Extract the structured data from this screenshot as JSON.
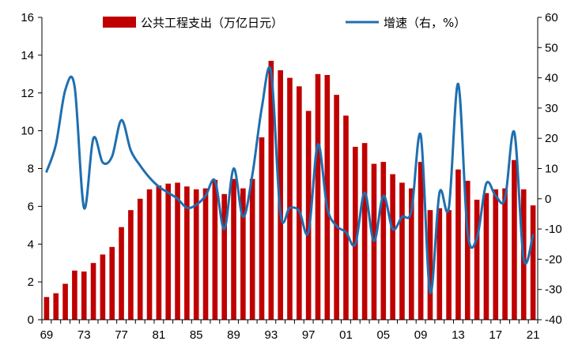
{
  "chart_data": {
    "type": "bar+line",
    "title": "",
    "legend": {
      "placement": "top",
      "entries": [
        "公共工程支出（万亿日元）",
        "增速（右，%）"
      ]
    },
    "colors": {
      "bar": "#c00000",
      "line": "#1f6fb0"
    },
    "categories": [
      "1969",
      "1970",
      "1971",
      "1972",
      "1973",
      "1974",
      "1975",
      "1976",
      "1977",
      "1978",
      "1979",
      "1980",
      "1981",
      "1982",
      "1983",
      "1984",
      "1985",
      "1986",
      "1987",
      "1988",
      "1989",
      "1990",
      "1991",
      "1992",
      "1993",
      "1994",
      "1995",
      "1996",
      "1997",
      "1998",
      "1999",
      "2000",
      "2001",
      "2002",
      "2003",
      "2004",
      "2005",
      "2006",
      "2007",
      "2008",
      "2009",
      "2010",
      "2011",
      "2012",
      "2013",
      "2014",
      "2015",
      "2016",
      "2017",
      "2018",
      "2019",
      "2020",
      "2021"
    ],
    "x_tick_labels": [
      "69",
      "73",
      "77",
      "81",
      "85",
      "89",
      "93",
      "97",
      "01",
      "05",
      "09",
      "13",
      "17",
      "21"
    ],
    "x_tick_categories": [
      "1969",
      "1973",
      "1977",
      "1981",
      "1985",
      "1989",
      "1993",
      "1997",
      "2001",
      "2005",
      "2009",
      "2013",
      "2017",
      "2021"
    ],
    "series": [
      {
        "name": "公共工程支出（万亿日元）",
        "type": "bar",
        "axis": "left",
        "values": [
          1.2,
          1.4,
          1.9,
          2.6,
          2.55,
          3.0,
          3.45,
          3.85,
          4.9,
          5.8,
          6.4,
          6.9,
          7.1,
          7.2,
          7.25,
          7.05,
          6.9,
          6.95,
          7.4,
          6.65,
          7.45,
          6.95,
          7.45,
          9.65,
          13.7,
          13.2,
          12.8,
          12.35,
          11.05,
          13.0,
          12.95,
          11.9,
          10.8,
          9.15,
          9.35,
          8.25,
          8.35,
          7.7,
          7.25,
          6.95,
          8.35,
          5.8,
          5.9,
          5.8,
          7.95,
          7.35,
          6.35,
          6.7,
          6.9,
          6.95,
          8.45,
          6.9,
          6.05
        ]
      },
      {
        "name": "增速（右，%）",
        "type": "line",
        "axis": "right",
        "values": [
          9,
          18,
          36,
          37,
          -3,
          20,
          12,
          14,
          26,
          16,
          11,
          7,
          4,
          2,
          0,
          -3,
          -2,
          1,
          6,
          -10,
          10,
          -6,
          8,
          30,
          42,
          -5,
          -3,
          -4,
          -11,
          18,
          -3,
          -9,
          -11,
          -15,
          2,
          -14,
          1,
          -10,
          -6,
          -4,
          21,
          -31,
          2,
          -3,
          38,
          -11,
          -13,
          5,
          1,
          0,
          22,
          -20,
          -12
        ]
      }
    ],
    "y_left": {
      "min": 0,
      "max": 16,
      "step": 2,
      "ticks": [
        "0",
        "2",
        "4",
        "6",
        "8",
        "10",
        "12",
        "14",
        "16"
      ]
    },
    "y_right": {
      "min": -40,
      "max": 60,
      "step": 10,
      "ticks": [
        "-40",
        "-30",
        "-20",
        "-10",
        "0",
        "10",
        "20",
        "30",
        "40",
        "50",
        "60"
      ]
    },
    "grid": false
  }
}
